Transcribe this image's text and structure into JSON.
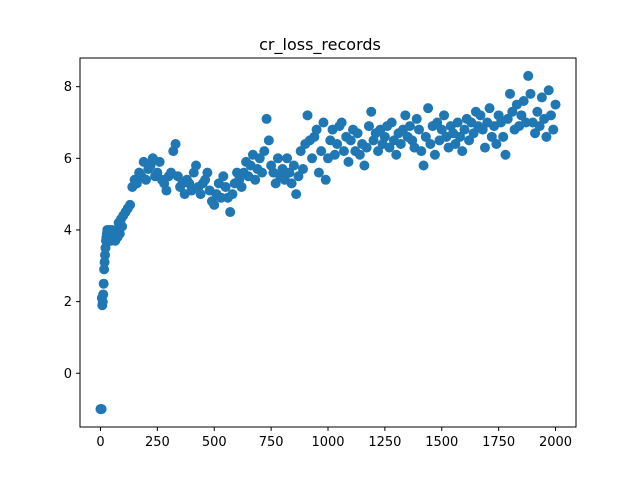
{
  "chart_data": {
    "type": "scatter",
    "title": "cr_loss_records",
    "xlabel": "",
    "ylabel": "",
    "xlim": [
      -90,
      2090
    ],
    "ylim": [
      -1.5,
      8.8
    ],
    "x_ticks": [
      0,
      250,
      500,
      750,
      1000,
      1250,
      1500,
      1750,
      2000
    ],
    "y_ticks": [
      0,
      2,
      4,
      6,
      8
    ],
    "grid": false,
    "legend": "none",
    "marker_color": "#1f77b4",
    "series": [
      {
        "points": [
          [
            0,
            -1.0
          ],
          [
            2,
            -1.0
          ],
          [
            5,
            -1.0
          ],
          [
            6,
            2.1
          ],
          [
            8,
            1.9
          ],
          [
            10,
            2.0
          ],
          [
            12,
            2.2
          ],
          [
            14,
            2.5
          ],
          [
            16,
            2.9
          ],
          [
            18,
            3.1
          ],
          [
            20,
            3.3
          ],
          [
            22,
            3.5
          ],
          [
            24,
            3.7
          ],
          [
            26,
            3.8
          ],
          [
            28,
            3.9
          ],
          [
            30,
            4.0
          ],
          [
            35,
            3.8
          ],
          [
            40,
            4.0
          ],
          [
            45,
            3.7
          ],
          [
            50,
            4.0
          ],
          [
            55,
            3.8
          ],
          [
            60,
            3.9
          ],
          [
            65,
            3.7
          ],
          [
            70,
            4.0
          ],
          [
            75,
            3.8
          ],
          [
            80,
            4.2
          ],
          [
            85,
            3.9
          ],
          [
            90,
            4.3
          ],
          [
            95,
            4.1
          ],
          [
            100,
            4.4
          ],
          [
            110,
            4.5
          ],
          [
            120,
            4.6
          ],
          [
            130,
            4.7
          ],
          [
            140,
            5.2
          ],
          [
            150,
            5.4
          ],
          [
            160,
            5.3
          ],
          [
            170,
            5.6
          ],
          [
            180,
            5.5
          ],
          [
            190,
            5.9
          ],
          [
            200,
            5.4
          ],
          [
            210,
            5.7
          ],
          [
            220,
            5.8
          ],
          [
            230,
            6.0
          ],
          [
            240,
            5.5
          ],
          [
            250,
            5.6
          ],
          [
            260,
            5.9
          ],
          [
            270,
            5.4
          ],
          [
            280,
            5.3
          ],
          [
            290,
            5.1
          ],
          [
            300,
            5.5
          ],
          [
            310,
            5.6
          ],
          [
            320,
            6.2
          ],
          [
            330,
            6.4
          ],
          [
            340,
            5.5
          ],
          [
            350,
            5.2
          ],
          [
            360,
            5.3
          ],
          [
            370,
            5.0
          ],
          [
            380,
            5.4
          ],
          [
            390,
            5.3
          ],
          [
            400,
            5.1
          ],
          [
            410,
            5.6
          ],
          [
            420,
            5.8
          ],
          [
            430,
            5.2
          ],
          [
            440,
            5.0
          ],
          [
            450,
            5.3
          ],
          [
            460,
            5.4
          ],
          [
            470,
            5.6
          ],
          [
            480,
            5.1
          ],
          [
            490,
            4.8
          ],
          [
            500,
            4.7
          ],
          [
            510,
            5.0
          ],
          [
            520,
            5.3
          ],
          [
            530,
            4.9
          ],
          [
            540,
            5.5
          ],
          [
            550,
            5.2
          ],
          [
            560,
            4.9
          ],
          [
            570,
            4.5
          ],
          [
            580,
            5.0
          ],
          [
            590,
            5.3
          ],
          [
            600,
            5.6
          ],
          [
            610,
            5.4
          ],
          [
            620,
            5.2
          ],
          [
            630,
            5.6
          ],
          [
            640,
            5.9
          ],
          [
            650,
            5.5
          ],
          [
            660,
            5.8
          ],
          [
            670,
            6.1
          ],
          [
            680,
            5.4
          ],
          [
            690,
            5.7
          ],
          [
            700,
            6.0
          ],
          [
            710,
            5.6
          ],
          [
            720,
            6.2
          ],
          [
            730,
            7.1
          ],
          [
            740,
            6.5
          ],
          [
            750,
            5.8
          ],
          [
            760,
            5.6
          ],
          [
            770,
            5.3
          ],
          [
            780,
            6.0
          ],
          [
            790,
            5.5
          ],
          [
            800,
            5.7
          ],
          [
            810,
            5.4
          ],
          [
            820,
            6.0
          ],
          [
            830,
            5.6
          ],
          [
            840,
            5.3
          ],
          [
            850,
            5.8
          ],
          [
            860,
            5.0
          ],
          [
            870,
            5.5
          ],
          [
            880,
            6.2
          ],
          [
            890,
            5.7
          ],
          [
            900,
            6.4
          ],
          [
            910,
            7.2
          ],
          [
            920,
            6.5
          ],
          [
            930,
            6.0
          ],
          [
            940,
            6.6
          ],
          [
            950,
            6.8
          ],
          [
            960,
            5.6
          ],
          [
            970,
            6.2
          ],
          [
            980,
            7.0
          ],
          [
            990,
            5.4
          ],
          [
            1000,
            6.0
          ],
          [
            1010,
            6.5
          ],
          [
            1020,
            6.8
          ],
          [
            1030,
            6.1
          ],
          [
            1040,
            6.4
          ],
          [
            1050,
            6.9
          ],
          [
            1060,
            7.0
          ],
          [
            1070,
            6.2
          ],
          [
            1080,
            6.6
          ],
          [
            1090,
            5.9
          ],
          [
            1100,
            6.5
          ],
          [
            1110,
            6.8
          ],
          [
            1120,
            6.2
          ],
          [
            1130,
            6.7
          ],
          [
            1140,
            6.1
          ],
          [
            1150,
            6.4
          ],
          [
            1160,
            5.8
          ],
          [
            1170,
            6.3
          ],
          [
            1180,
            6.9
          ],
          [
            1190,
            7.3
          ],
          [
            1200,
            6.5
          ],
          [
            1210,
            6.7
          ],
          [
            1220,
            6.2
          ],
          [
            1230,
            6.8
          ],
          [
            1240,
            6.4
          ],
          [
            1250,
            6.6
          ],
          [
            1260,
            6.9
          ],
          [
            1270,
            6.3
          ],
          [
            1280,
            7.0
          ],
          [
            1290,
            6.5
          ],
          [
            1300,
            6.1
          ],
          [
            1310,
            6.7
          ],
          [
            1320,
            6.4
          ],
          [
            1330,
            6.8
          ],
          [
            1340,
            7.2
          ],
          [
            1350,
            6.6
          ],
          [
            1360,
            6.9
          ],
          [
            1370,
            6.5
          ],
          [
            1380,
            6.3
          ],
          [
            1390,
            7.1
          ],
          [
            1400,
            6.8
          ],
          [
            1410,
            6.2
          ],
          [
            1420,
            5.8
          ],
          [
            1430,
            6.6
          ],
          [
            1440,
            7.4
          ],
          [
            1450,
            6.4
          ],
          [
            1460,
            6.9
          ],
          [
            1470,
            6.1
          ],
          [
            1480,
            7.0
          ],
          [
            1490,
            6.5
          ],
          [
            1500,
            6.8
          ],
          [
            1510,
            7.2
          ],
          [
            1520,
            6.6
          ],
          [
            1530,
            6.3
          ],
          [
            1540,
            6.9
          ],
          [
            1550,
            6.7
          ],
          [
            1560,
            6.4
          ],
          [
            1570,
            7.0
          ],
          [
            1580,
            6.6
          ],
          [
            1590,
            6.2
          ],
          [
            1600,
            6.8
          ],
          [
            1610,
            7.1
          ],
          [
            1620,
            6.5
          ],
          [
            1630,
            7.0
          ],
          [
            1640,
            6.7
          ],
          [
            1650,
            7.3
          ],
          [
            1660,
            6.9
          ],
          [
            1670,
            7.2
          ],
          [
            1680,
            6.8
          ],
          [
            1690,
            6.3
          ],
          [
            1700,
            7.0
          ],
          [
            1710,
            7.4
          ],
          [
            1720,
            6.6
          ],
          [
            1730,
            6.9
          ],
          [
            1740,
            6.4
          ],
          [
            1750,
            7.2
          ],
          [
            1760,
            7.0
          ],
          [
            1770,
            6.6
          ],
          [
            1780,
            6.1
          ],
          [
            1790,
            7.1
          ],
          [
            1800,
            7.8
          ],
          [
            1810,
            7.3
          ],
          [
            1820,
            6.8
          ],
          [
            1830,
            7.5
          ],
          [
            1840,
            6.9
          ],
          [
            1850,
            7.2
          ],
          [
            1860,
            7.6
          ],
          [
            1870,
            7.0
          ],
          [
            1880,
            8.3
          ],
          [
            1890,
            7.8
          ],
          [
            1900,
            7.0
          ],
          [
            1910,
            6.7
          ],
          [
            1920,
            7.3
          ],
          [
            1930,
            6.9
          ],
          [
            1940,
            7.7
          ],
          [
            1950,
            7.1
          ],
          [
            1960,
            6.6
          ],
          [
            1970,
            7.9
          ],
          [
            1980,
            7.2
          ],
          [
            1990,
            6.8
          ],
          [
            2000,
            7.5
          ]
        ]
      }
    ]
  }
}
